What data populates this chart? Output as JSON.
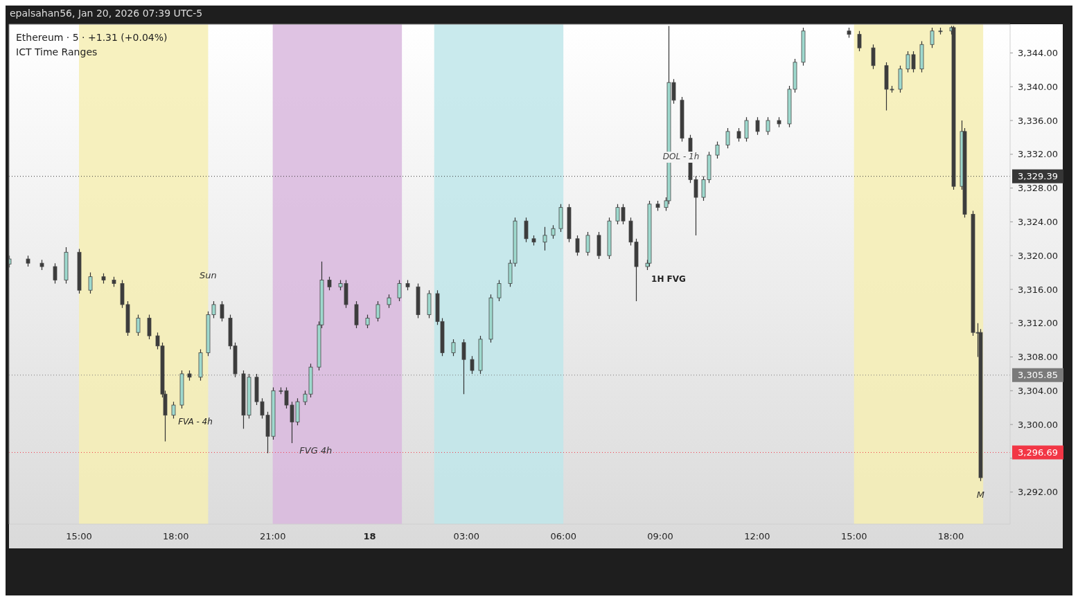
{
  "chart_data": {
    "type": "candlestick",
    "title": "Ethereum · 5 · +1.31 (+0.04%)",
    "subtitle": "ICT Time Ranges",
    "annotations": [
      "epalsahan56, Jan 20, 2026 07:39 UTC-5",
      {
        "text": "Sun",
        "x": "2026-01-17T19:00",
        "y": 3317.7
      },
      "FVA - 4h",
      {
        "text": "FVG 4h",
        "x": "2026-01-17T22:20",
        "y": 3296.9
      },
      "1H FVG",
      "DOL - 1h",
      {
        "text": "M",
        "x": "2026-01-18T18:55",
        "y": 3291.7
      }
    ],
    "colors": [
      "#9ed9ce",
      "#3c3c3c",
      "#3c3c3c",
      "#3c3c3c",
      "#9ed9ce",
      "#3c3c3c",
      "#9ed9ce",
      "#3c3c3c",
      "#3c3c3c",
      "#3c3c3c",
      "#3c3c3c",
      "#9ed9ce",
      "#3c3c3c",
      "#3c3c3c",
      "#3c3c3c",
      "#3c3c3c",
      "#9ed9ce",
      "#9ed9ce",
      "#3c3c3c",
      "#9ed9ce",
      "#9ed9ce",
      "#9ed9ce",
      "#3c3c3c",
      "#3c3c3c",
      "#3c3c3c",
      "#3c3c3c",
      "#9ed9ce",
      "#3c3c3c",
      "#3c3c3c",
      "#3c3c3c",
      "#9ed9ce",
      "#9ed9ce",
      "#3c3c3c",
      "#3c3c3c",
      "#9ed9ce",
      "#9ed9ce",
      "#9ed9ce",
      "#9ed9ce",
      "#9ed9ce",
      "#3c3c3c",
      "#9ed9ce",
      "#3c3c3c",
      "#3c3c3c",
      "#9ed9ce",
      "#9ed9ce",
      "#9ed9ce",
      "#9ed9ce",
      "#3c3c3c",
      "#3c3c3c",
      "#9ed9ce",
      "#3c3c3c",
      "#3c3c3c",
      "#9ed9ce",
      "#3c3c3c",
      "#3c3c3c",
      "#9ed9ce",
      "#9ed9ce",
      "#9ed9ce",
      "#9ed9ce",
      "#9ed9ce",
      "#3c3c3c",
      "#3c3c3c",
      "#9ed9ce",
      "#9ed9ce",
      "#9ed9ce",
      "#3c3c3c",
      "#3c3c3c",
      "#9ed9ce",
      "#3c3c3c",
      "#9ed9ce",
      "#9ed9ce",
      "#3c3c3c",
      "#3c3c3c",
      "#3c3c3c",
      "#9ed9ce",
      "#9ed9ce",
      "#3c3c3c",
      "#9ed9ce",
      "#9ed9ce",
      "#3c3c3c",
      "#3c3c3c",
      "#3c3c3c",
      "#3c3c3c",
      "#9ed9ce",
      "#9ed9ce",
      "#9ed9ce",
      "#9ed9ce",
      "#3c3c3c",
      "#9ed9ce",
      "#3c3c3c",
      "#9ed9ce",
      "#3c3c3c",
      "#9ed9ce",
      "#9ed9ce",
      "#9ed9ce",
      "#3c3c3c",
      "#3c3c3c",
      "#3c3c3c",
      "#3c3c3c",
      "#9ed9ce",
      "#9ed9ce",
      "#9ed9ce",
      "#3c3c3c",
      "#9ed9ce",
      "#9ed9ce",
      "#9ed9ce",
      "#9ed9ce",
      "#3c3c3c",
      "#9ed9ce",
      "#3c3c3c",
      "#3c3c3c",
      "#9ed9ce",
      "#3c3c3c"
    ],
    "x": [
      "2026-01-17T12:50",
      "2026-01-17T13:25",
      "2026-01-17T13:50",
      "2026-01-17T14:15",
      "2026-01-17T14:35",
      "2026-01-17T15:00",
      "2026-01-17T15:20",
      "2026-01-17T15:45",
      "2026-01-17T16:05",
      "2026-01-17T16:20",
      "2026-01-17T16:30",
      "2026-01-17T16:50",
      "2026-01-17T17:10",
      "2026-01-17T17:25",
      "2026-01-17T17:35",
      "2026-01-17T17:40",
      "2026-01-17T17:55",
      "2026-01-17T18:10",
      "2026-01-17T18:25",
      "2026-01-17T18:45",
      "2026-01-17T19:00",
      "2026-01-17T19:10",
      "2026-01-17T19:25",
      "2026-01-17T19:40",
      "2026-01-17T19:50",
      "2026-01-17T20:05",
      "2026-01-17T20:15",
      "2026-01-17T20:30",
      "2026-01-17T20:40",
      "2026-01-17T20:50",
      "2026-01-17T21:00",
      "2026-01-17T21:15",
      "2026-01-17T21:25",
      "2026-01-17T21:35",
      "2026-01-17T21:45",
      "2026-01-17T22:00",
      "2026-01-17T22:10",
      "2026-01-17T22:25",
      "2026-01-17T22:30",
      "2026-01-17T22:45",
      "2026-01-17T23:05",
      "2026-01-17T23:15",
      "2026-01-17T23:35",
      "2026-01-17T23:55",
      "2026-01-18T00:15",
      "2026-01-18T00:35",
      "2026-01-18T00:55",
      "2026-01-18T01:10",
      "2026-01-18T01:30",
      "2026-01-18T01:50",
      "2026-01-18T02:05",
      "2026-01-18T02:15",
      "2026-01-18T02:35",
      "2026-01-18T02:55",
      "2026-01-18T03:10",
      "2026-01-18T03:25",
      "2026-01-18T03:45",
      "2026-01-18T04:00",
      "2026-01-18T04:20",
      "2026-01-18T04:30",
      "2026-01-18T04:50",
      "2026-01-18T05:05",
      "2026-01-18T05:25",
      "2026-01-18T05:40",
      "2026-01-18T05:55",
      "2026-01-18T06:10",
      "2026-01-18T06:25",
      "2026-01-18T06:45",
      "2026-01-18T07:05",
      "2026-01-18T07:25",
      "2026-01-18T07:40",
      "2026-01-18T07:50",
      "2026-01-18T08:05",
      "2026-01-18T08:15",
      "2026-01-18T08:35",
      "2026-01-18T08:40",
      "2026-01-18T08:55",
      "2026-01-18T09:10",
      "2026-01-18T09:15",
      "2026-01-18T09:25",
      "2026-01-18T09:40",
      "2026-01-18T09:55",
      "2026-01-18T10:05",
      "2026-01-18T10:20",
      "2026-01-18T10:30",
      "2026-01-18T10:45",
      "2026-01-18T11:05",
      "2026-01-18T11:25",
      "2026-01-18T11:40",
      "2026-01-18T12:00",
      "2026-01-18T12:20",
      "2026-01-18T12:40",
      "2026-01-18T13:00",
      "2026-01-18T13:10",
      "2026-01-18T13:25",
      "2026-01-18T14:50",
      "2026-01-18T15:10",
      "2026-01-18T15:35",
      "2026-01-18T16:00",
      "2026-01-18T16:10",
      "2026-01-18T16:25",
      "2026-01-18T16:40",
      "2026-01-18T16:50",
      "2026-01-18T17:05",
      "2026-01-18T17:25",
      "2026-01-18T17:40",
      "2026-01-18T18:00",
      "2026-01-18T18:05",
      "2026-01-18T18:20",
      "2026-01-18T18:25",
      "2026-01-18T18:40",
      "2026-01-18T18:50",
      "2026-01-18T18:55"
    ],
    "ohlc": [
      [
        3319.0,
        3320.0,
        3318.6,
        3319.6
      ],
      [
        3319.6,
        3320.0,
        3318.7,
        3319.1
      ],
      [
        3319.1,
        3319.5,
        3318.3,
        3318.7
      ],
      [
        3318.7,
        3319.1,
        3316.7,
        3317.1
      ],
      [
        3317.1,
        3321.0,
        3316.7,
        3320.4
      ],
      [
        3320.4,
        3320.8,
        3315.5,
        3315.9
      ],
      [
        3315.9,
        3318.0,
        3315.5,
        3317.5
      ],
      [
        3317.5,
        3317.9,
        3316.7,
        3317.1
      ],
      [
        3317.1,
        3317.5,
        3316.3,
        3316.7
      ],
      [
        3316.7,
        3317.1,
        3313.8,
        3314.2
      ],
      [
        3314.2,
        3314.6,
        3310.5,
        3310.9
      ],
      [
        3310.9,
        3313.0,
        3310.5,
        3312.6
      ],
      [
        3312.6,
        3313.0,
        3310.1,
        3310.5
      ],
      [
        3310.5,
        3310.9,
        3308.9,
        3309.3
      ],
      [
        3309.3,
        3309.7,
        3303.2,
        3303.6
      ],
      [
        3303.6,
        3304.0,
        3298.0,
        3301.1
      ],
      [
        3301.1,
        3302.7,
        3300.7,
        3302.3
      ],
      [
        3302.3,
        3306.4,
        3301.9,
        3306.0
      ],
      [
        3306.0,
        3306.4,
        3305.2,
        3305.6
      ],
      [
        3305.6,
        3308.9,
        3305.2,
        3308.5
      ],
      [
        3308.5,
        3313.4,
        3308.1,
        3313.0
      ],
      [
        3313.0,
        3314.6,
        3312.6,
        3314.2
      ],
      [
        3314.2,
        3314.6,
        3312.2,
        3312.6
      ],
      [
        3312.6,
        3313.0,
        3308.9,
        3309.3
      ],
      [
        3309.3,
        3309.7,
        3305.6,
        3306.0
      ],
      [
        3306.0,
        3306.4,
        3299.5,
        3301.1
      ],
      [
        3301.1,
        3306.0,
        3300.7,
        3305.6
      ],
      [
        3305.6,
        3306.0,
        3302.3,
        3302.7
      ],
      [
        3302.7,
        3303.1,
        3300.7,
        3301.1
      ],
      [
        3301.1,
        3301.5,
        3296.6,
        3298.6
      ],
      [
        3298.6,
        3304.4,
        3298.2,
        3304.0
      ],
      [
        3304.0,
        3304.4,
        3303.6,
        3304.0
      ],
      [
        3304.0,
        3304.4,
        3301.9,
        3302.3
      ],
      [
        3302.3,
        3302.7,
        3297.8,
        3300.3
      ],
      [
        3300.3,
        3303.1,
        3299.9,
        3302.7
      ],
      [
        3302.7,
        3304.0,
        3302.3,
        3303.6
      ],
      [
        3303.6,
        3307.2,
        3303.2,
        3306.8
      ],
      [
        3306.8,
        3312.2,
        3306.4,
        3311.8
      ],
      [
        3311.8,
        3319.3,
        3311.4,
        3317.1
      ],
      [
        3317.1,
        3317.5,
        3315.9,
        3316.3
      ],
      [
        3316.3,
        3317.1,
        3315.9,
        3316.7
      ],
      [
        3316.7,
        3317.1,
        3313.8,
        3314.2
      ],
      [
        3314.2,
        3314.6,
        3311.4,
        3311.8
      ],
      [
        3311.8,
        3313.0,
        3311.4,
        3312.6
      ],
      [
        3312.6,
        3314.6,
        3312.2,
        3314.2
      ],
      [
        3314.2,
        3315.4,
        3313.8,
        3315.0
      ],
      [
        3315.0,
        3317.1,
        3314.6,
        3316.7
      ],
      [
        3316.7,
        3317.1,
        3315.9,
        3316.3
      ],
      [
        3316.3,
        3316.7,
        3312.6,
        3313.0
      ],
      [
        3313.0,
        3315.9,
        3312.6,
        3315.5
      ],
      [
        3315.5,
        3315.9,
        3311.8,
        3312.2
      ],
      [
        3312.2,
        3312.6,
        3308.1,
        3308.5
      ],
      [
        3308.5,
        3310.1,
        3308.1,
        3309.7
      ],
      [
        3309.7,
        3310.1,
        3303.6,
        3307.7
      ],
      [
        3307.7,
        3308.1,
        3306.0,
        3306.4
      ],
      [
        3306.4,
        3310.5,
        3306.0,
        3310.1
      ],
      [
        3310.1,
        3315.4,
        3309.7,
        3315.0
      ],
      [
        3315.0,
        3317.1,
        3314.6,
        3316.7
      ],
      [
        3316.7,
        3319.5,
        3316.3,
        3319.1
      ],
      [
        3319.1,
        3324.5,
        3318.7,
        3324.1
      ],
      [
        3324.1,
        3324.5,
        3321.6,
        3322.0
      ],
      [
        3322.0,
        3322.4,
        3321.2,
        3321.6
      ],
      [
        3321.6,
        3323.4,
        3320.6,
        3322.4
      ],
      [
        3322.4,
        3323.6,
        3322.0,
        3323.2
      ],
      [
        3323.2,
        3326.1,
        3322.8,
        3325.7
      ],
      [
        3325.7,
        3326.1,
        3321.6,
        3322.0
      ],
      [
        3322.0,
        3322.4,
        3320.0,
        3320.4
      ],
      [
        3320.4,
        3322.8,
        3320.0,
        3322.4
      ],
      [
        3322.4,
        3322.8,
        3319.6,
        3320.0
      ],
      [
        3320.0,
        3324.5,
        3319.6,
        3324.1
      ],
      [
        3324.1,
        3326.1,
        3323.7,
        3325.7
      ],
      [
        3325.7,
        3326.1,
        3323.7,
        3324.1
      ],
      [
        3324.1,
        3324.5,
        3321.2,
        3321.6
      ],
      [
        3321.6,
        3322.0,
        3314.6,
        3318.7
      ],
      [
        3318.7,
        3319.5,
        3318.3,
        3319.1
      ],
      [
        3319.1,
        3326.5,
        3318.7,
        3326.1
      ],
      [
        3326.1,
        3326.5,
        3325.3,
        3325.7
      ],
      [
        3325.7,
        3326.9,
        3325.3,
        3326.5
      ],
      [
        3326.5,
        3347.2,
        3326.1,
        3340.5
      ],
      [
        3340.5,
        3340.9,
        3338.0,
        3338.4
      ],
      [
        3338.4,
        3338.8,
        3333.5,
        3333.9
      ],
      [
        3333.9,
        3334.3,
        3328.6,
        3329.0
      ],
      [
        3329.0,
        3329.4,
        3322.4,
        3326.9
      ],
      [
        3326.9,
        3329.4,
        3326.5,
        3329.0
      ],
      [
        3329.0,
        3332.3,
        3328.6,
        3331.9
      ],
      [
        3331.9,
        3333.5,
        3331.5,
        3333.1
      ],
      [
        3333.1,
        3335.1,
        3332.7,
        3334.7
      ],
      [
        3334.7,
        3335.1,
        3333.5,
        3333.9
      ],
      [
        3333.9,
        3336.4,
        3333.5,
        3336.0
      ],
      [
        3336.0,
        3336.4,
        3334.3,
        3334.7
      ],
      [
        3334.7,
        3336.4,
        3334.3,
        3336.0
      ],
      [
        3336.0,
        3336.4,
        3335.2,
        3335.6
      ],
      [
        3335.6,
        3340.1,
        3335.2,
        3339.7
      ],
      [
        3339.7,
        3343.3,
        3339.3,
        3342.9
      ],
      [
        3342.9,
        3347.0,
        3342.5,
        3346.6
      ],
      [
        3346.6,
        3347.0,
        3345.8,
        3346.2
      ],
      [
        3346.2,
        3346.6,
        3344.2,
        3344.6
      ],
      [
        3344.6,
        3345.0,
        3342.1,
        3342.5
      ],
      [
        3342.5,
        3342.9,
        3337.2,
        3339.7
      ],
      [
        3339.7,
        3340.1,
        3339.3,
        3339.7
      ],
      [
        3339.7,
        3342.5,
        3339.3,
        3342.1
      ],
      [
        3342.1,
        3344.2,
        3341.7,
        3343.8
      ],
      [
        3343.8,
        3344.2,
        3341.7,
        3342.1
      ],
      [
        3342.1,
        3345.4,
        3341.7,
        3345.0
      ],
      [
        3345.0,
        3347.0,
        3344.6,
        3346.6
      ],
      [
        3346.6,
        3347.0,
        3346.2,
        3346.6
      ],
      [
        3346.6,
        3347.2,
        3346.2,
        3347.0
      ],
      [
        3347.0,
        3347.2,
        3327.8,
        3328.2
      ],
      [
        3328.2,
        3336.0,
        3327.8,
        3334.7
      ],
      [
        3334.7,
        3335.1,
        3324.5,
        3324.9
      ],
      [
        3324.9,
        3325.3,
        3310.5,
        3310.9
      ],
      [
        3310.9,
        3312.0,
        3308.0,
        3310.9
      ],
      [
        3310.9,
        3311.3,
        3293.3,
        3293.7
      ]
    ],
    "xlim": [
      "2026-01-17T12:50",
      "2026-01-18T19:50"
    ],
    "xticks": [
      {
        "value": "2026-01-17T15:00",
        "label": "15:00"
      },
      {
        "value": "2026-01-17T18:00",
        "label": "18:00"
      },
      {
        "value": "2026-01-17T21:00",
        "label": "21:00"
      },
      {
        "value": "2026-01-18T00:00",
        "label": "18"
      },
      {
        "value": "2026-01-18T03:00",
        "label": "03:00"
      },
      {
        "value": "2026-01-18T06:00",
        "label": "06:00"
      },
      {
        "value": "2026-01-18T09:00",
        "label": "09:00"
      },
      {
        "value": "2026-01-18T12:00",
        "label": "12:00"
      },
      {
        "value": "2026-01-18T15:00",
        "label": "15:00"
      },
      {
        "value": "2026-01-18T18:00",
        "label": "18:00"
      }
    ],
    "ylim": [
      3288.2,
      3347.4
    ],
    "yticks": [
      {
        "value": 3292,
        "label": "3,292.00"
      },
      {
        "value": 3296,
        "label": null
      },
      {
        "value": 3300,
        "label": "3,300.00"
      },
      {
        "value": 3304,
        "label": "3,304.00"
      },
      {
        "value": 3308,
        "label": "3,308.00"
      },
      {
        "value": 3312,
        "label": "3,312.00"
      },
      {
        "value": 3316,
        "label": "3,316.00"
      },
      {
        "value": 3320,
        "label": "3,320.00"
      },
      {
        "value": 3324,
        "label": "3,324.00"
      },
      {
        "value": 3328,
        "label": "3,328.00"
      },
      {
        "value": 3332,
        "label": "3,332.00"
      },
      {
        "value": 3336,
        "label": "3,336.00"
      },
      {
        "value": 3340,
        "label": "3,340.00"
      },
      {
        "value": 3344,
        "label": "3,344.00"
      }
    ],
    "bands": [
      {
        "axis": "x",
        "from": "2026-01-17T15:00",
        "to": "2026-01-17T19:00",
        "color": "#f6eeb4"
      },
      {
        "axis": "x",
        "from": "2026-01-17T21:00",
        "to": "2026-01-18T01:00",
        "color": "#d9b9de"
      },
      {
        "axis": "x",
        "from": "2026-01-18T02:00",
        "to": "2026-01-18T06:00",
        "color": "#c0e6ea"
      },
      {
        "axis": "x",
        "from": "2026-01-18T15:00",
        "to": "2026-01-18T19:00",
        "color": "#f6eeb4"
      }
    ],
    "ref_lines": [
      {
        "axis": "y",
        "value": 3329.39,
        "label": "3,329.39",
        "color": "#363636",
        "line_style": "dotted"
      },
      {
        "axis": "y",
        "value": 3305.85,
        "label": "3,305.85",
        "color": "#7a7a7a",
        "line_style": "dotted"
      },
      {
        "axis": "y",
        "value": 3296.69,
        "label": "3,296.69",
        "color": "#f23645",
        "line_style": "dotted"
      }
    ]
  }
}
